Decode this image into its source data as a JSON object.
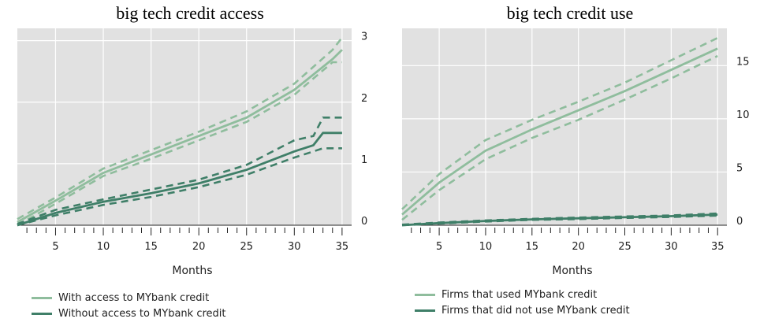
{
  "colors": {
    "light": "#8fbd9d",
    "dark": "#3f7f68",
    "plot_bg": "#e1e1e1",
    "grid": "#ffffff"
  },
  "chart_data": [
    {
      "type": "line",
      "title": "big tech credit access",
      "xlabel": "Months",
      "ylabel": "",
      "xlim": [
        1,
        36
      ],
      "ylim": [
        0,
        3.2
      ],
      "x_ticks": [
        5,
        10,
        15,
        20,
        25,
        30,
        35
      ],
      "y_ticks": [
        0,
        1,
        2,
        3
      ],
      "y_axis_side": "right",
      "grid": true,
      "legend_position": "bottom-left",
      "series": [
        {
          "name": "With access to MYbank credit",
          "color": "light",
          "x": [
            1,
            5,
            10,
            15,
            20,
            25,
            30,
            34,
            35
          ],
          "values": [
            0.05,
            0.4,
            0.85,
            1.15,
            1.45,
            1.75,
            2.2,
            2.7,
            2.85
          ],
          "ci_upper": [
            0.1,
            0.45,
            0.92,
            1.22,
            1.52,
            1.85,
            2.3,
            2.85,
            3.05
          ],
          "ci_lower": [
            0.0,
            0.35,
            0.8,
            1.08,
            1.38,
            1.68,
            2.12,
            2.65,
            2.65
          ]
        },
        {
          "name": "Without access to MYbank credit",
          "color": "dark",
          "x": [
            1,
            5,
            10,
            15,
            20,
            25,
            30,
            32,
            33,
            35
          ],
          "values": [
            0.0,
            0.2,
            0.38,
            0.52,
            0.68,
            0.9,
            1.2,
            1.3,
            1.5,
            1.5
          ],
          "ci_upper": [
            0.02,
            0.25,
            0.42,
            0.58,
            0.74,
            0.98,
            1.38,
            1.45,
            1.75,
            1.75
          ],
          "ci_lower": [
            0.0,
            0.16,
            0.33,
            0.46,
            0.62,
            0.82,
            1.1,
            1.2,
            1.25,
            1.25
          ]
        }
      ]
    },
    {
      "type": "line",
      "title": "big tech credit use",
      "xlabel": "Months",
      "ylabel": "",
      "xlim": [
        1,
        36
      ],
      "ylim": [
        0,
        18.5
      ],
      "x_ticks": [
        5,
        10,
        15,
        20,
        25,
        30,
        35
      ],
      "y_ticks": [
        0,
        5,
        10,
        15
      ],
      "y_axis_side": "right",
      "grid": true,
      "legend_position": "bottom-left",
      "series": [
        {
          "name": "Firms that used MYbank credit",
          "color": "light",
          "x": [
            1,
            5,
            10,
            15,
            20,
            25,
            30,
            35
          ],
          "values": [
            1.0,
            4.0,
            7.0,
            9.0,
            10.8,
            12.6,
            14.6,
            16.6
          ],
          "ci_upper": [
            1.5,
            4.8,
            8.0,
            9.9,
            11.6,
            13.4,
            15.5,
            17.6
          ],
          "ci_lower": [
            0.5,
            3.3,
            6.2,
            8.2,
            9.9,
            11.8,
            13.8,
            15.9
          ]
        },
        {
          "name": "Firms that did not use MYbank credit",
          "color": "dark",
          "x": [
            1,
            5,
            10,
            15,
            20,
            25,
            30,
            35
          ],
          "values": [
            0.0,
            0.2,
            0.4,
            0.55,
            0.65,
            0.75,
            0.85,
            1.0
          ],
          "ci_upper": [
            0.05,
            0.25,
            0.45,
            0.6,
            0.72,
            0.82,
            0.92,
            1.1
          ],
          "ci_lower": [
            0.0,
            0.15,
            0.35,
            0.5,
            0.58,
            0.68,
            0.78,
            0.9
          ]
        }
      ]
    }
  ]
}
